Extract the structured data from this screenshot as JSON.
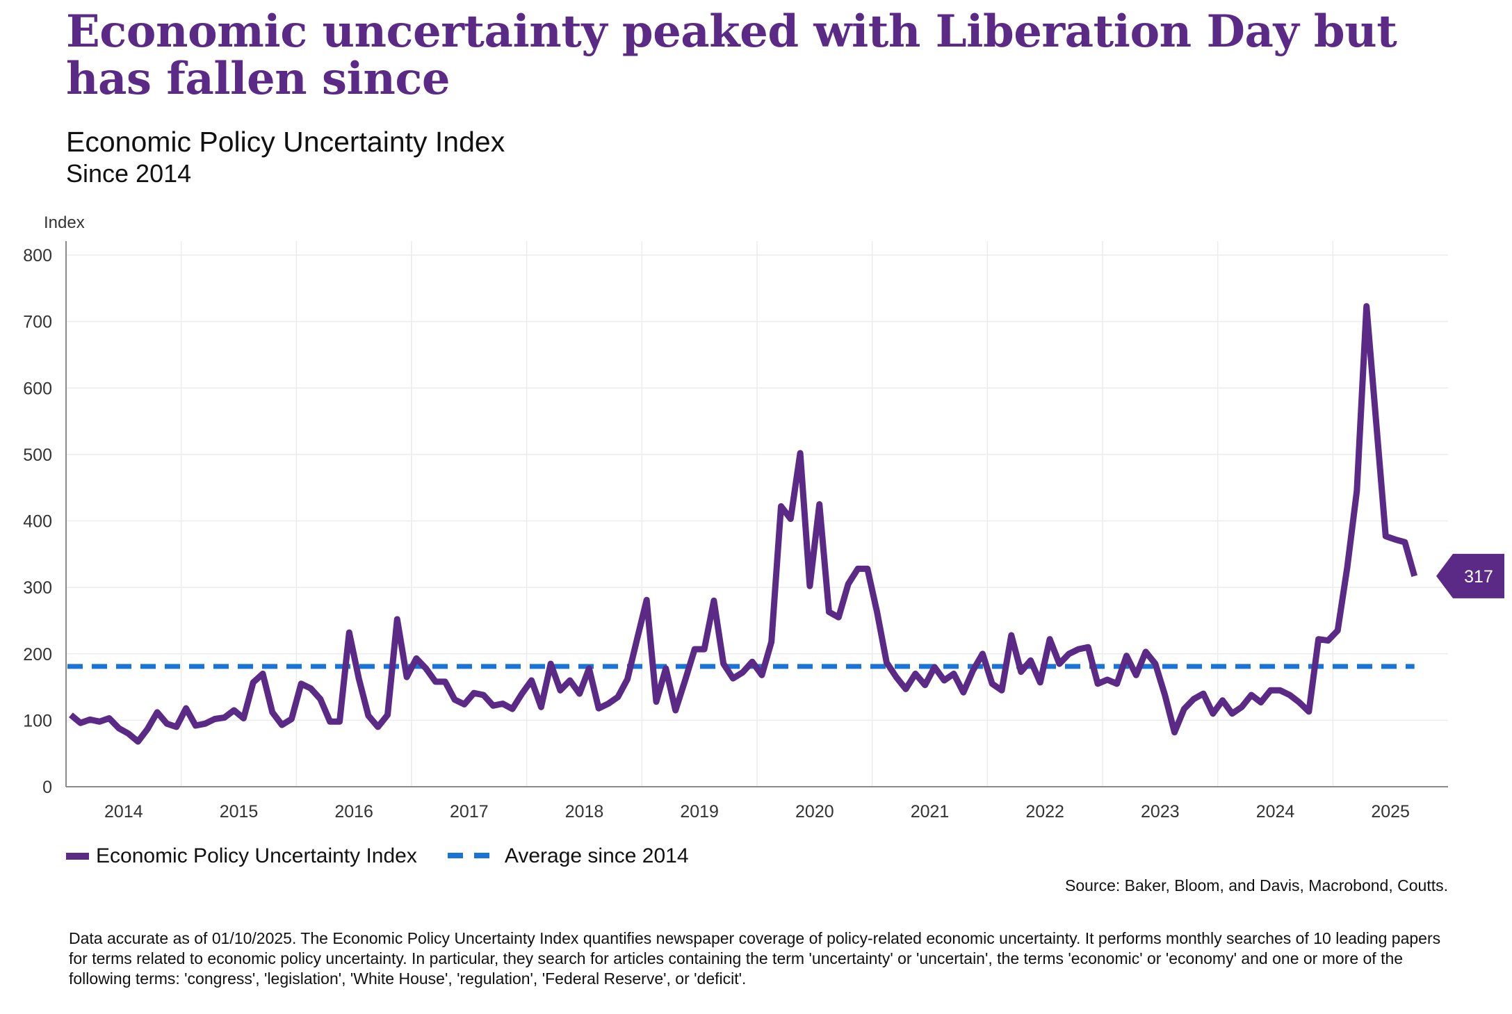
{
  "headline": "Economic uncertainty peaked with Liberation Day but has fallen since",
  "subtitle": "Economic Policy Uncertainty Index",
  "subtitle2": "Since 2014",
  "source": "Source: Baker, Bloom, and Davis, Macrobond, Coutts.",
  "footnote": "Data accurate as of 01/10/2025. The Economic Policy Uncertainty Index quantifies newspaper coverage of policy-related economic uncertainty. It performs monthly searches of 10 leading papers for terms related to economic policy uncertainty. In particular, they search for articles containing the term 'uncertainty' or 'uncertain', the terms 'economic' or 'economy' and one or more of the following terms: 'congress', 'legislation', 'White House', 'regulation', 'Federal Reserve', or 'deficit'.",
  "colors": {
    "series": "#5b2a86",
    "average": "#1a73d6",
    "grid": "#ececec",
    "axis": "#8a8a8a"
  },
  "chart_data": {
    "type": "line",
    "ylabel": "Index",
    "ylim": [
      0,
      800
    ],
    "yticks": [
      0,
      100,
      200,
      300,
      400,
      500,
      600,
      700,
      800
    ],
    "xticks": [
      "2014",
      "2015",
      "2016",
      "2017",
      "2018",
      "2019",
      "2020",
      "2021",
      "2022",
      "2023",
      "2024",
      "2025"
    ],
    "x_start": "2014-01",
    "x_range": [
      "2014-01",
      "2025-12"
    ],
    "grid": true,
    "legend_position": "bottom-left",
    "last_value_label": "317",
    "average_value": 181,
    "series": [
      {
        "name": "Economic Policy Uncertainty Index",
        "style": "solid",
        "values": [
          108,
          96,
          101,
          98,
          103,
          88,
          80,
          68,
          87,
          112,
          95,
          90,
          118,
          92,
          95,
          102,
          104,
          115,
          103,
          157,
          170,
          112,
          93,
          102,
          155,
          148,
          132,
          98,
          98,
          232,
          163,
          107,
          90,
          108,
          252,
          165,
          193,
          178,
          158,
          158,
          131,
          124,
          141,
          138,
          122,
          125,
          117,
          140,
          160,
          120,
          185,
          145,
          160,
          140,
          178,
          118,
          125,
          135,
          162,
          222,
          281,
          128,
          178,
          115,
          160,
          207,
          207,
          280,
          185,
          163,
          172,
          188,
          168,
          218,
          422,
          403,
          502,
          302,
          425,
          263,
          255,
          305,
          328,
          328,
          263,
          187,
          165,
          147,
          170,
          153,
          180,
          160,
          170,
          142,
          175,
          200,
          155,
          145,
          228,
          173,
          190,
          157,
          222,
          185,
          200,
          207,
          210,
          155,
          161,
          155,
          197,
          168,
          203,
          185,
          138,
          82,
          117,
          132,
          140,
          110,
          130,
          110,
          120,
          138,
          127,
          145,
          145,
          138,
          127,
          113,
          222,
          220,
          235,
          330,
          445,
          723,
          550,
          377,
          372,
          368,
          317
        ]
      },
      {
        "name": "Average since 2014",
        "style": "dashed",
        "values": [
          181,
          181
        ]
      }
    ]
  }
}
